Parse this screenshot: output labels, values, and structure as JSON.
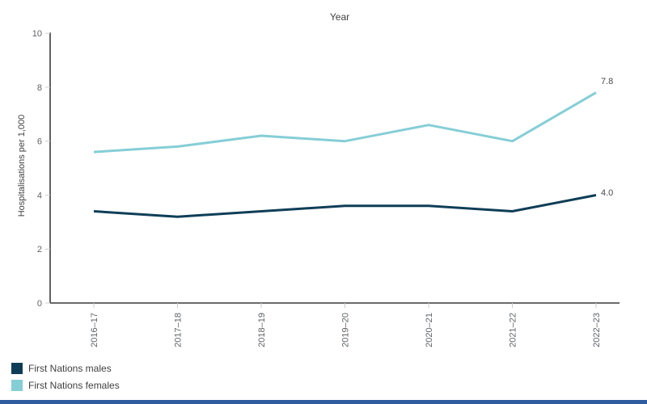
{
  "title": "Year",
  "chart_data": {
    "type": "line",
    "title": "Year",
    "xlabel": "Year",
    "ylabel": "Hospitalisations per 1,000",
    "categories": [
      "2016–17",
      "2017–18",
      "2018–19",
      "2019–20",
      "2020–21",
      "2021–22",
      "2022–23"
    ],
    "series": [
      {
        "name": "First Nations females",
        "color": "#85ced6",
        "values": [
          5.6,
          5.8,
          6.2,
          6.0,
          6.6,
          6.0,
          7.8
        ],
        "end_label": "7.8"
      },
      {
        "name": "First Nations males",
        "color": "#0e3e57",
        "values": [
          3.4,
          3.2,
          3.4,
          3.6,
          3.6,
          3.4,
          4.0
        ],
        "end_label": "4.0"
      }
    ],
    "ylim": [
      0,
      10
    ],
    "yticks": [
      0,
      2,
      4,
      6,
      8,
      10
    ],
    "grid": false,
    "legend_position": "bottom-left"
  },
  "legend": {
    "items": [
      {
        "label": "First Nations males",
        "color": "#0e3e57"
      },
      {
        "label": "First Nations females",
        "color": "#85ced6"
      }
    ]
  },
  "colors": {
    "axis": "#3a3a3a",
    "tick_mark": "#cccccc",
    "tick_label": "#5f6368",
    "data_label": "#4a4a4a",
    "footer_bar": "#2e5c9e",
    "background": "#ffffff"
  }
}
